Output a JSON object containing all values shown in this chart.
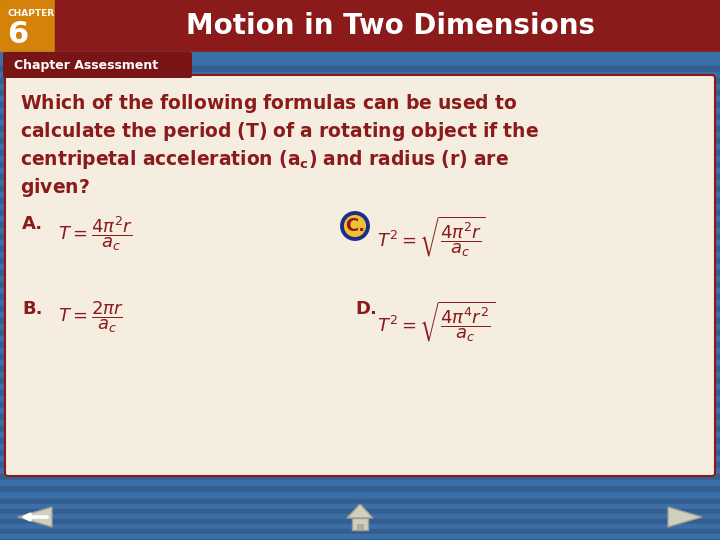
{
  "title": "Motion in Two Dimensions",
  "chapter_label": "CHAPTER",
  "chapter_number": "6",
  "section_label": "Chapter Assessment",
  "bg_color_main": "#3a6fa8",
  "bg_color_header_red": "#8b1a1a",
  "bg_color_header_orange": "#d4820a",
  "bg_color_section": "#7a1515",
  "bg_color_content": "#f5ede0",
  "header_text_color": "#ffffff",
  "section_text_color": "#ffffff",
  "question_text_color": "#8b1a1a",
  "answer_text_color": "#8b1a1a",
  "correct_circle_fill": "#f0c030",
  "correct_circle_border": "#1a2e8a",
  "stripe_color1": "#3a6fa8",
  "stripe_color2": "#345e90"
}
